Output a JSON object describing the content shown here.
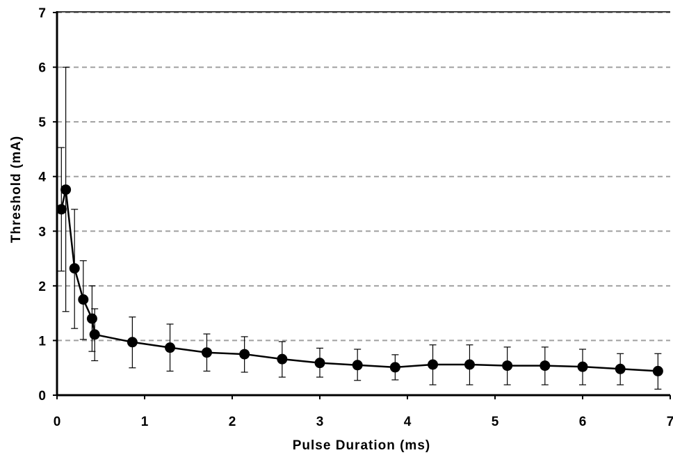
{
  "chart_data": {
    "type": "line",
    "title": "",
    "xlabel": "Pulse Duration (ms)",
    "ylabel": "Threshold (mA)",
    "xlim": [
      0,
      7
    ],
    "ylim": [
      0,
      7
    ],
    "xticks": [
      "0",
      "1",
      "2",
      "3",
      "4",
      "5",
      "6",
      "7"
    ],
    "yticks": [
      "0",
      "1",
      "2",
      "3",
      "4",
      "5",
      "6",
      "7"
    ],
    "grid": "horizontal dashed",
    "legend": "none",
    "colors": {
      "line": "#000000",
      "marker": "#000000",
      "grid": "#a0a0a0",
      "axis": "#000000"
    },
    "series": [
      {
        "x": [
          0.05,
          0.1,
          0.2,
          0.3,
          0.4,
          0.43,
          0.86,
          1.29,
          1.71,
          2.14,
          2.57,
          3.0,
          3.43,
          3.86,
          4.29,
          4.71,
          5.14,
          5.57,
          6.0,
          6.43,
          6.86
        ],
        "y": [
          3.4,
          3.76,
          2.32,
          1.75,
          1.4,
          1.11,
          0.97,
          0.87,
          0.78,
          0.75,
          0.66,
          0.59,
          0.55,
          0.51,
          0.56,
          0.56,
          0.54,
          0.54,
          0.52,
          0.48,
          0.44
        ],
        "error_upper": [
          4.53,
          6.0,
          3.4,
          2.46,
          2.0,
          1.58,
          1.43,
          1.3,
          1.12,
          1.07,
          0.98,
          0.86,
          0.84,
          0.74,
          0.92,
          0.92,
          0.88,
          0.88,
          0.84,
          0.76,
          0.76
        ],
        "error_lower": [
          2.27,
          1.53,
          1.22,
          1.02,
          0.8,
          0.63,
          0.5,
          0.44,
          0.44,
          0.42,
          0.33,
          0.33,
          0.27,
          0.28,
          0.19,
          0.19,
          0.19,
          0.19,
          0.19,
          0.19,
          0.11
        ]
      }
    ]
  }
}
